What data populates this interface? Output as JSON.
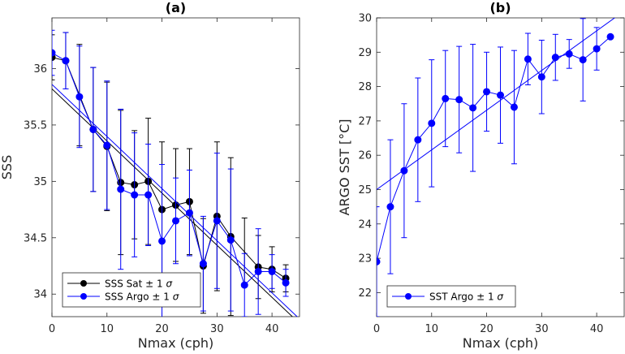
{
  "chart_data": [
    {
      "type": "line",
      "title": "(a)",
      "xlabel": "Nmax (cph)",
      "ylabel": "SSS",
      "xlim": [
        0,
        45
      ],
      "ylim": [
        33.8,
        36.45
      ],
      "xticks": [
        0,
        10,
        20,
        30,
        40
      ],
      "yticks": [
        34,
        34.5,
        35,
        35.5,
        36
      ],
      "grid": false,
      "legend_position": "bottom-left",
      "x": [
        0,
        2.5,
        5,
        7.5,
        10,
        12.5,
        15,
        17.5,
        20,
        22.5,
        25,
        27.5,
        30,
        32.5,
        35,
        37.5,
        40,
        42.5
      ],
      "series": [
        {
          "name": "SSS Sat ± 1 σ",
          "color": "#000000",
          "values": [
            36.1,
            36.07,
            null,
            35.46,
            35.31,
            34.99,
            34.97,
            35.0,
            34.75,
            34.79,
            34.82,
            34.25,
            34.69,
            34.51,
            null,
            34.24,
            34.22,
            34.14
          ],
          "error": [
            0.2,
            0.25,
            0.45,
            0.55,
            0.57,
            0.64,
            0.48,
            0.56,
            0.6,
            0.5,
            0.47,
            0.42,
            0.66,
            0.7,
            0.3,
            0.28,
            0.2,
            0.12
          ],
          "fit": {
            "x": [
              0,
              45
            ],
            "y": [
              35.82,
              33.74
            ]
          }
        },
        {
          "name": "SSS Argo ± 1 σ",
          "color": "#0000ff",
          "values": [
            36.14,
            36.07,
            35.75,
            35.46,
            35.32,
            34.93,
            34.88,
            34.88,
            34.47,
            34.65,
            34.72,
            34.27,
            34.65,
            34.48,
            34.08,
            34.2,
            34.2,
            34.1
          ],
          "error": [
            0.2,
            0.25,
            0.45,
            0.55,
            0.57,
            0.71,
            0.55,
            0.45,
            0.68,
            0.38,
            0.38,
            0.42,
            0.6,
            0.63,
            0.28,
            0.38,
            0.15,
            0.12
          ],
          "fit": {
            "x": [
              0,
              45
            ],
            "y": [
              35.86,
              33.78
            ]
          }
        }
      ]
    },
    {
      "type": "line",
      "title": "(b)",
      "xlabel": "Nmax (cph)",
      "ylabel": "ARGO SST [°C]",
      "xlim": [
        0,
        45
      ],
      "ylim": [
        21.3,
        30
      ],
      "xticks": [
        0,
        10,
        20,
        30,
        40
      ],
      "yticks": [
        22,
        23,
        24,
        25,
        26,
        27,
        28,
        29,
        30
      ],
      "grid": false,
      "legend_position": "bottom-left",
      "x": [
        0,
        2.5,
        5,
        7.5,
        10,
        12.5,
        15,
        17.5,
        20,
        22.5,
        25,
        27.5,
        30,
        32.5,
        35,
        37.5,
        40,
        42.5
      ],
      "series": [
        {
          "name": "SST Argo ± 1 σ",
          "color": "#0000ff",
          "values": [
            22.9,
            24.5,
            25.55,
            26.45,
            26.93,
            27.65,
            27.62,
            27.38,
            27.85,
            27.75,
            27.4,
            28.8,
            28.28,
            28.85,
            28.95,
            28.78,
            29.1,
            29.45
          ],
          "error": [
            1.6,
            1.95,
            1.95,
            1.8,
            1.85,
            1.4,
            1.55,
            1.85,
            1.15,
            1.4,
            1.65,
            0.75,
            1.07,
            0.67,
            0.42,
            1.2,
            0.62,
            0.0
          ],
          "fit": {
            "x": [
              0,
              45
            ],
            "y": [
              25.0,
              30.2
            ]
          }
        }
      ]
    }
  ]
}
